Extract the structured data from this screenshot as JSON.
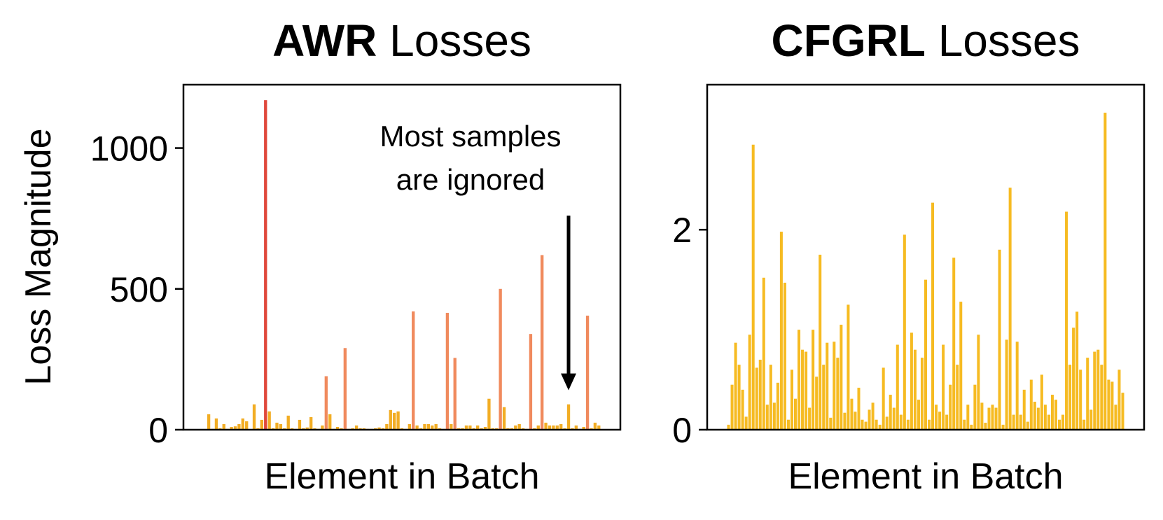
{
  "chart_data": [
    {
      "type": "bar",
      "title_bold": "AWR",
      "title_rest": "Losses",
      "xlabel": "Element in Batch",
      "ylabel": "Loss Magnitude",
      "ylim": [
        0,
        1225
      ],
      "yticks": [
        0,
        500,
        1000
      ],
      "annotation": {
        "lines": [
          "Most samples",
          "are ignored"
        ],
        "arrow_x_element": 96,
        "arrow_from_y": 760,
        "arrow_to_y": 140
      },
      "values": [
        0,
        55,
        3,
        40,
        5,
        20,
        3,
        10,
        12,
        20,
        40,
        30,
        2,
        90,
        5,
        35,
        1170,
        65,
        5,
        25,
        20,
        5,
        50,
        5,
        3,
        35,
        5,
        8,
        45,
        5,
        3,
        15,
        190,
        55,
        3,
        10,
        5,
        290,
        3,
        5,
        15,
        5,
        5,
        3,
        3,
        5,
        8,
        5,
        20,
        70,
        60,
        65,
        5,
        3,
        20,
        420,
        15,
        5,
        20,
        20,
        15,
        20,
        5,
        3,
        415,
        20,
        255,
        5,
        5,
        15,
        15,
        5,
        15,
        5,
        10,
        110,
        5,
        5,
        500,
        80,
        5,
        5,
        15,
        20,
        5,
        3,
        340,
        5,
        15,
        620,
        25,
        15,
        15,
        15,
        20,
        5,
        90,
        5,
        15,
        3,
        10,
        405,
        5,
        25,
        15
      ],
      "colors": {
        "low": "#f2ad24",
        "mid": "#f08a5d",
        "high": "#e0483c"
      }
    },
    {
      "type": "bar",
      "title_bold": "CFGRL",
      "title_rest": "Losses",
      "xlabel": "Element in Batch",
      "ylabel": "",
      "ylim": [
        0,
        3.45
      ],
      "yticks": [
        0,
        2
      ],
      "values": [
        0.05,
        0.45,
        0.87,
        0.65,
        0.4,
        0.13,
        0.95,
        2.85,
        0.62,
        0.7,
        1.52,
        0.25,
        0.65,
        0.27,
        0.47,
        1.98,
        1.47,
        0.1,
        0.6,
        0.31,
        1.0,
        0.8,
        0.78,
        0.22,
        1.0,
        0.53,
        1.75,
        0.65,
        0.87,
        0.12,
        0.88,
        0.72,
        1.05,
        0.17,
        1.25,
        0.31,
        0.18,
        0.42,
        0.1,
        0.08,
        0.2,
        0.27,
        0.1,
        0.05,
        0.62,
        0.13,
        0.35,
        0.22,
        0.85,
        0.15,
        1.95,
        0.1,
        0.97,
        0.8,
        0.3,
        0.72,
        1.5,
        0.1,
        2.27,
        0.25,
        0.18,
        0.85,
        0.15,
        0.45,
        1.72,
        0.65,
        1.28,
        0.1,
        0.25,
        0.05,
        0.45,
        0.95,
        0.27,
        0.07,
        0.22,
        0.25,
        0.22,
        1.8,
        0.05,
        0.9,
        2.42,
        0.15,
        0.88,
        0.15,
        0.4,
        0.08,
        0.5,
        0.28,
        0.22,
        0.55,
        0.25,
        0.15,
        0.35,
        0.3,
        0.1,
        0.15,
        2.18,
        0.65,
        1.02,
        1.18,
        0.6,
        0.1,
        0.72,
        0.2,
        0.78,
        0.8,
        0.65,
        3.17,
        0.5,
        0.48,
        0.25,
        0.6,
        0.37
      ],
      "colors": {
        "low": "#f6bb22"
      }
    }
  ]
}
